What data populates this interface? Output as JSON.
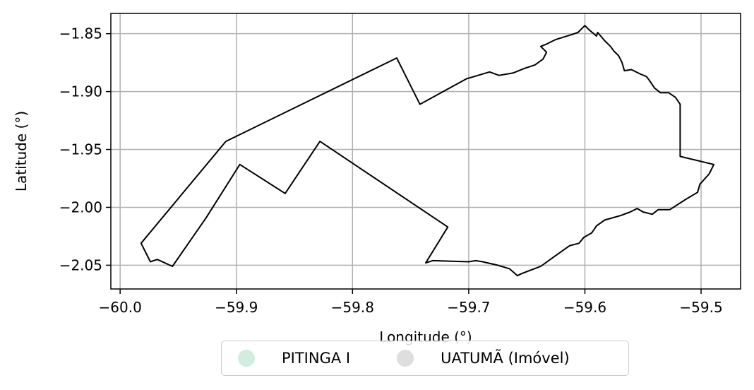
{
  "map": {
    "xlabel": "Longitude (°)",
    "ylabel": "Latitude (°)",
    "xlim": [
      -60.008,
      -59.466
    ],
    "ylim": [
      -2.0705,
      -1.8325
    ],
    "x_ticks": [
      -60.0,
      -59.9,
      -59.8,
      -59.7,
      -59.6,
      -59.5
    ],
    "x_tick_labels": [
      "−60.0",
      "−59.9",
      "−59.8",
      "−59.7",
      "−59.6",
      "−59.5"
    ],
    "y_ticks": [
      -1.85,
      -1.9,
      -1.95,
      -2.0,
      -2.05
    ],
    "y_tick_labels": [
      "−1.85",
      "−1.90",
      "−1.95",
      "−2.00",
      "−2.05"
    ],
    "grid": true,
    "boundary_color": "#000000",
    "boundary": [
      [
        -59.982,
        -2.031
      ],
      [
        -59.909,
        -1.943
      ],
      [
        -59.762,
        -1.871
      ],
      [
        -59.742,
        -1.911
      ],
      [
        -59.702,
        -1.889
      ],
      [
        -59.692,
        -1.886
      ],
      [
        -59.682,
        -1.883
      ],
      [
        -59.674,
        -1.886
      ],
      [
        -59.662,
        -1.884
      ],
      [
        -59.652,
        -1.88
      ],
      [
        -59.643,
        -1.877
      ],
      [
        -59.636,
        -1.872
      ],
      [
        -59.633,
        -1.866
      ],
      [
        -59.638,
        -1.861
      ],
      [
        -59.633,
        -1.859
      ],
      [
        -59.625,
        -1.855
      ],
      [
        -59.612,
        -1.851
      ],
      [
        -59.606,
        -1.849
      ],
      [
        -59.603,
        -1.846
      ],
      [
        -59.6,
        -1.843
      ],
      [
        -59.596,
        -1.847
      ],
      [
        -59.59,
        -1.852
      ],
      [
        -59.589,
        -1.849
      ],
      [
        -59.583,
        -1.856
      ],
      [
        -59.578,
        -1.861
      ],
      [
        -59.575,
        -1.865
      ],
      [
        -59.571,
        -1.869
      ],
      [
        -59.568,
        -1.875
      ],
      [
        -59.566,
        -1.882
      ],
      [
        -59.56,
        -1.881
      ],
      [
        -59.552,
        -1.885
      ],
      [
        -59.547,
        -1.887
      ],
      [
        -59.544,
        -1.891
      ],
      [
        -59.54,
        -1.897
      ],
      [
        -59.535,
        -1.901
      ],
      [
        -59.528,
        -1.901
      ],
      [
        -59.522,
        -1.905
      ],
      [
        -59.518,
        -1.911
      ],
      [
        -59.518,
        -1.956
      ],
      [
        -59.489,
        -1.963
      ],
      [
        -59.493,
        -1.971
      ],
      [
        -59.501,
        -1.98
      ],
      [
        -59.503,
        -1.987
      ],
      [
        -59.513,
        -1.993
      ],
      [
        -59.527,
        -2.002
      ],
      [
        -59.537,
        -2.002
      ],
      [
        -59.542,
        -2.006
      ],
      [
        -59.55,
        -2.004
      ],
      [
        -59.555,
        -2.001
      ],
      [
        -59.561,
        -2.004
      ],
      [
        -59.569,
        -2.007
      ],
      [
        -59.583,
        -2.011
      ],
      [
        -59.59,
        -2.016
      ],
      [
        -59.594,
        -2.022
      ],
      [
        -59.601,
        -2.026
      ],
      [
        -59.605,
        -2.031
      ],
      [
        -59.613,
        -2.033
      ],
      [
        -59.627,
        -2.043
      ],
      [
        -59.638,
        -2.051
      ],
      [
        -59.654,
        -2.057
      ],
      [
        -59.658,
        -2.059
      ],
      [
        -59.665,
        -2.053
      ],
      [
        -59.675,
        -2.05
      ],
      [
        -59.688,
        -2.047
      ],
      [
        -59.694,
        -2.046
      ],
      [
        -59.7,
        -2.047
      ],
      [
        -59.731,
        -2.046
      ],
      [
        -59.737,
        -2.048
      ],
      [
        -59.718,
        -2.017
      ],
      [
        -59.828,
        -1.943
      ],
      [
        -59.858,
        -1.988
      ],
      [
        -59.897,
        -1.963
      ],
      [
        -59.926,
        -2.009
      ],
      [
        -59.955,
        -2.051
      ],
      [
        -59.968,
        -2.045
      ],
      [
        -59.974,
        -2.047
      ],
      [
        -59.982,
        -2.031
      ]
    ]
  },
  "legend": {
    "items": [
      {
        "label": "PITINGA I",
        "color": "#cfeedd"
      },
      {
        "label": "UATUMÃ (Imóvel)",
        "color": "#dedede"
      }
    ]
  }
}
